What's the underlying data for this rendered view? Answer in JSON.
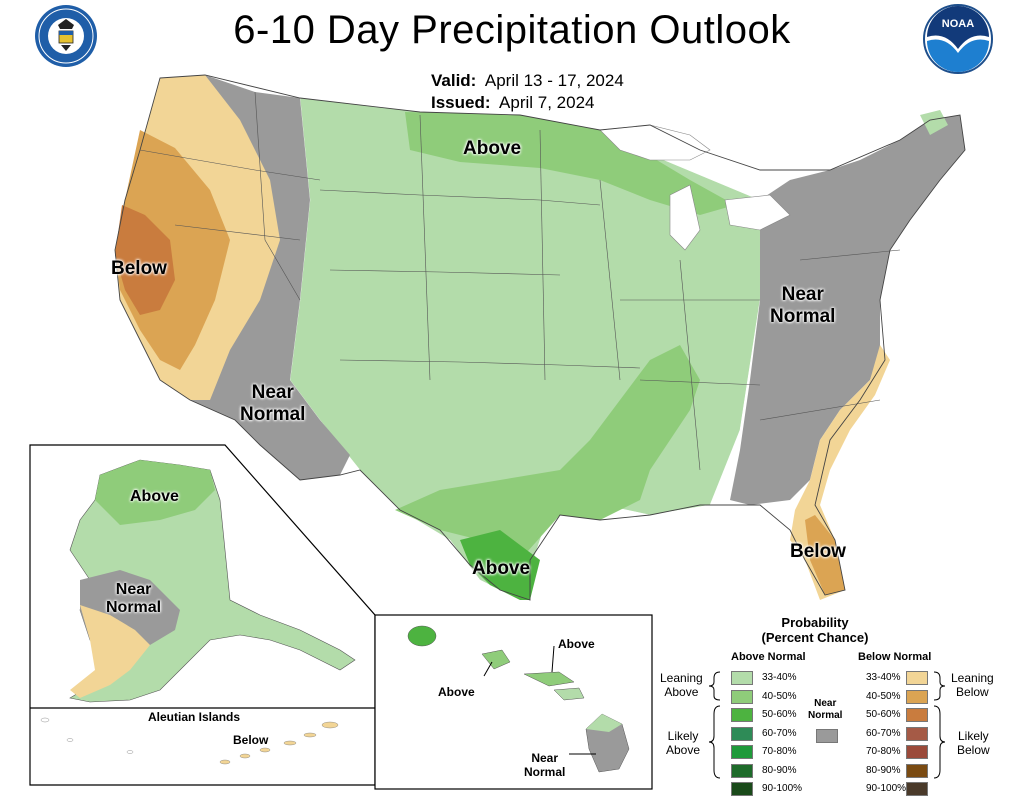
{
  "title": "6-10 Day Precipitation Outlook",
  "valid_label": "Valid:",
  "valid_value": "April 13 - 17, 2024",
  "issued_label": "Issued:",
  "issued_value": "April 7, 2024",
  "logos": {
    "left": "Department of Commerce seal",
    "left_text": "DEPARTMENT OF COMMERCE · UNITED STATES OF AMERICA",
    "right": "NOAA logo",
    "right_text": "NOAA"
  },
  "map_labels": {
    "conus_above_north": "Above",
    "conus_below_west": "Below",
    "conus_near_normal_sw": [
      "Near",
      "Normal"
    ],
    "conus_near_normal_east": [
      "Near",
      "Normal"
    ],
    "conus_above_texas": "Above",
    "conus_below_florida": "Below",
    "alaska_above": "Above",
    "alaska_near_normal": [
      "Near",
      "Normal"
    ],
    "aleutian_title": "Aleutian Islands",
    "aleutian_below": "Below",
    "hawaii_above_1": "Above",
    "hawaii_above_2": "Above",
    "hawaii_near_normal": [
      "Near",
      "Normal"
    ]
  },
  "legend": {
    "title": [
      "Probability",
      "(Percent Chance)"
    ],
    "above_header": "Above Normal",
    "below_header": "Below Normal",
    "near_normal": [
      "Near",
      "Normal"
    ],
    "leaning_above": [
      "Leaning",
      "Above"
    ],
    "likely_above": [
      "Likely",
      "Above"
    ],
    "leaning_below": [
      "Leaning",
      "Below"
    ],
    "likely_below": [
      "Likely",
      "Below"
    ],
    "above_bins": [
      {
        "label": "33-40%",
        "color": "#b3dcaa"
      },
      {
        "label": "40-50%",
        "color": "#8fcc7a"
      },
      {
        "label": "50-60%",
        "color": "#4db340"
      },
      {
        "label": "60-70%",
        "color": "#2e8b57"
      },
      {
        "label": "70-80%",
        "color": "#1f9a3a"
      },
      {
        "label": "80-90%",
        "color": "#1e6b2a"
      },
      {
        "label": "90-100%",
        "color": "#1a4a1a"
      }
    ],
    "below_bins": [
      {
        "label": "33-40%",
        "color": "#f2d596"
      },
      {
        "label": "40-50%",
        "color": "#dba453"
      },
      {
        "label": "50-60%",
        "color": "#c97c3e"
      },
      {
        "label": "60-70%",
        "color": "#a55a46"
      },
      {
        "label": "70-80%",
        "color": "#9b4a3a"
      },
      {
        "label": "80-90%",
        "color": "#7a4b12"
      },
      {
        "label": "90-100%",
        "color": "#4a3a2a"
      }
    ],
    "near_normal_color": "#9a9a9a"
  },
  "colors": {
    "above_33_40": "#b3dcaa",
    "above_40_50": "#8fcc7a",
    "above_50_60": "#4db340",
    "below_33_40": "#f2d596",
    "below_40_50": "#dba453",
    "below_50_60": "#c97c3e",
    "near_normal": "#9a9a9a",
    "noaa_blue": "#1e7fd0",
    "seal_blue": "#1f5ea8"
  }
}
